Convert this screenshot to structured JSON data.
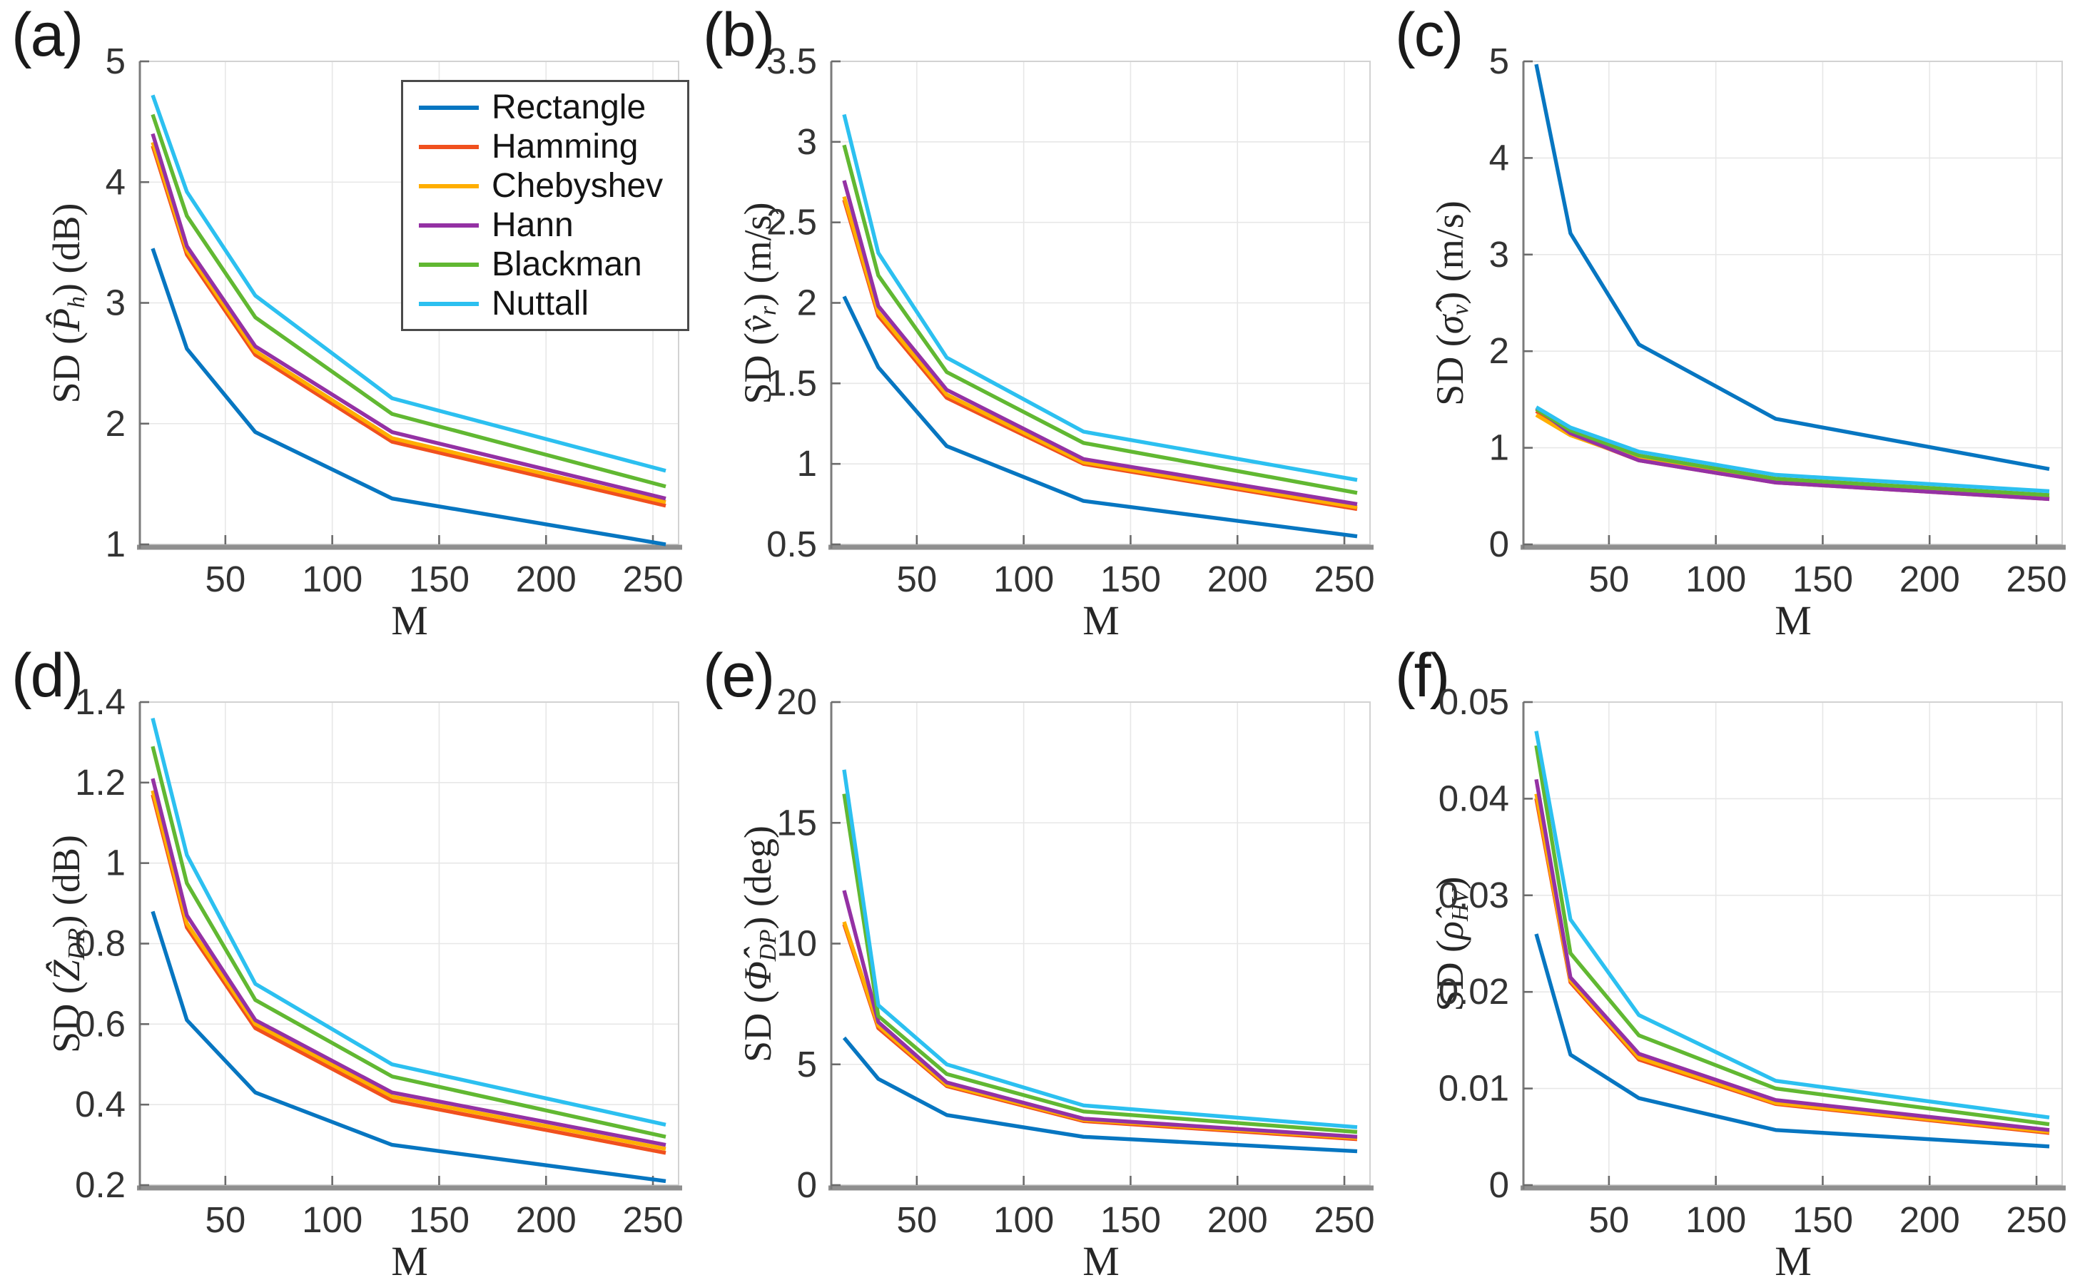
{
  "figure": {
    "background": "#ffffff",
    "xlabel": "M",
    "x_values": [
      16,
      32,
      64,
      128,
      256
    ],
    "series_names": [
      "Rectangle",
      "Hamming",
      "Chebyshev",
      "Hann",
      "Blackman",
      "Nuttall"
    ],
    "series_colors": [
      "#0776C1",
      "#F0501E",
      "#FFAE00",
      "#9431A4",
      "#61B832",
      "#2CC0F0"
    ]
  },
  "chart_data": [
    {
      "type": "line",
      "panel_label": "(a)",
      "xlabel": "M",
      "ylabel_parts": {
        "pre": "SD (",
        "sym": "P̂",
        "sub": "h",
        "post": ") (dB)"
      },
      "x": [
        16,
        32,
        64,
        128,
        256
      ],
      "xlim": [
        10,
        262
      ],
      "xticks": [
        50,
        100,
        150,
        200,
        250
      ],
      "ylim": [
        1,
        5
      ],
      "yticks": [
        "1",
        "2",
        "3",
        "4",
        "5"
      ],
      "grid": true,
      "legend": true,
      "legend_position": "upper right",
      "series": [
        {
          "name": "Rectangle",
          "color": "#0776C1",
          "values": [
            3.45,
            2.62,
            1.93,
            1.38,
            1.0
          ]
        },
        {
          "name": "Hamming",
          "color": "#F0501E",
          "values": [
            4.3,
            3.4,
            2.57,
            1.85,
            1.32
          ]
        },
        {
          "name": "Chebyshev",
          "color": "#FFAE00",
          "values": [
            4.33,
            3.43,
            2.6,
            1.88,
            1.35
          ]
        },
        {
          "name": "Hann",
          "color": "#9431A4",
          "values": [
            4.4,
            3.47,
            2.64,
            1.93,
            1.38
          ]
        },
        {
          "name": "Blackman",
          "color": "#61B832",
          "values": [
            4.56,
            3.72,
            2.88,
            2.08,
            1.48
          ]
        },
        {
          "name": "Nuttall",
          "color": "#2CC0F0",
          "values": [
            4.72,
            3.92,
            3.06,
            2.21,
            1.61
          ]
        }
      ]
    },
    {
      "type": "line",
      "panel_label": "(b)",
      "xlabel": "M",
      "ylabel_parts": {
        "pre": "SD (",
        "sym": "v̂",
        "sub": "r",
        "post": ") (m/s)"
      },
      "x": [
        16,
        32,
        64,
        128,
        256
      ],
      "xlim": [
        10,
        262
      ],
      "xticks": [
        50,
        100,
        150,
        200,
        250
      ],
      "ylim": [
        0.5,
        3.5
      ],
      "yticks": [
        "0.5",
        "1",
        "1.5",
        "2",
        "2.5",
        "3",
        "3.5"
      ],
      "grid": true,
      "legend": false,
      "series": [
        {
          "name": "Rectangle",
          "color": "#0776C1",
          "values": [
            2.04,
            1.6,
            1.11,
            0.77,
            0.55
          ]
        },
        {
          "name": "Hamming",
          "color": "#F0501E",
          "values": [
            2.64,
            1.92,
            1.41,
            1.0,
            0.72
          ]
        },
        {
          "name": "Chebyshev",
          "color": "#FFAE00",
          "values": [
            2.66,
            1.94,
            1.43,
            1.01,
            0.73
          ]
        },
        {
          "name": "Hann",
          "color": "#9431A4",
          "values": [
            2.76,
            1.98,
            1.46,
            1.03,
            0.75
          ]
        },
        {
          "name": "Blackman",
          "color": "#61B832",
          "values": [
            2.98,
            2.17,
            1.57,
            1.13,
            0.82
          ]
        },
        {
          "name": "Nuttall",
          "color": "#2CC0F0",
          "values": [
            3.17,
            2.31,
            1.66,
            1.2,
            0.9
          ]
        }
      ]
    },
    {
      "type": "line",
      "panel_label": "(c)",
      "xlabel": "M",
      "ylabel_parts": {
        "pre": "SD (",
        "sym": "σ̂",
        "sub": "v",
        "post": ") (m/s)"
      },
      "x": [
        16,
        32,
        64,
        128,
        256
      ],
      "xlim": [
        10,
        262
      ],
      "xticks": [
        50,
        100,
        150,
        200,
        250
      ],
      "ylim": [
        0,
        5
      ],
      "yticks": [
        "0",
        "1",
        "2",
        "3",
        "4",
        "5"
      ],
      "grid": true,
      "legend": false,
      "series": [
        {
          "name": "Rectangle",
          "color": "#0776C1",
          "values": [
            4.97,
            3.22,
            2.07,
            1.3,
            0.78
          ]
        },
        {
          "name": "Hamming",
          "color": "#F0501E",
          "values": [
            1.38,
            1.14,
            0.87,
            0.64,
            0.47
          ]
        },
        {
          "name": "Chebyshev",
          "color": "#FFAE00",
          "values": [
            1.34,
            1.13,
            0.88,
            0.65,
            0.48
          ]
        },
        {
          "name": "Hann",
          "color": "#9431A4",
          "values": [
            1.41,
            1.15,
            0.87,
            0.64,
            0.47
          ]
        },
        {
          "name": "Blackman",
          "color": "#61B832",
          "values": [
            1.4,
            1.18,
            0.92,
            0.68,
            0.51
          ]
        },
        {
          "name": "Nuttall",
          "color": "#2CC0F0",
          "values": [
            1.42,
            1.21,
            0.96,
            0.72,
            0.55
          ]
        }
      ]
    },
    {
      "type": "line",
      "panel_label": "(d)",
      "xlabel": "M",
      "ylabel_parts": {
        "pre": "SD (",
        "sym": "Ẑ",
        "sub": "DR",
        "post": ") (dB)"
      },
      "x": [
        16,
        32,
        64,
        128,
        256
      ],
      "xlim": [
        10,
        262
      ],
      "xticks": [
        50,
        100,
        150,
        200,
        250
      ],
      "ylim": [
        0.2,
        1.4
      ],
      "yticks": [
        "0.2",
        "0.4",
        "0.6",
        "0.8",
        "1",
        "1.2",
        "1.4"
      ],
      "grid": true,
      "legend": false,
      "series": [
        {
          "name": "Rectangle",
          "color": "#0776C1",
          "values": [
            0.88,
            0.61,
            0.43,
            0.3,
            0.21
          ]
        },
        {
          "name": "Hamming",
          "color": "#F0501E",
          "values": [
            1.17,
            0.84,
            0.59,
            0.41,
            0.28
          ]
        },
        {
          "name": "Chebyshev",
          "color": "#FFAE00",
          "values": [
            1.18,
            0.85,
            0.6,
            0.42,
            0.29
          ]
        },
        {
          "name": "Hann",
          "color": "#9431A4",
          "values": [
            1.21,
            0.87,
            0.61,
            0.43,
            0.3
          ]
        },
        {
          "name": "Blackman",
          "color": "#61B832",
          "values": [
            1.29,
            0.95,
            0.66,
            0.47,
            0.32
          ]
        },
        {
          "name": "Nuttall",
          "color": "#2CC0F0",
          "values": [
            1.36,
            1.02,
            0.7,
            0.5,
            0.35
          ]
        }
      ]
    },
    {
      "type": "line",
      "panel_label": "(e)",
      "xlabel": "M",
      "ylabel_parts": {
        "pre": "SD (",
        "sym": "Φ̂",
        "sub": "DP",
        "post": ") (deg)"
      },
      "x": [
        16,
        32,
        64,
        128,
        256
      ],
      "xlim": [
        10,
        262
      ],
      "xticks": [
        50,
        100,
        150,
        200,
        250
      ],
      "ylim": [
        0,
        20
      ],
      "yticks": [
        "0",
        "5",
        "10",
        "15",
        "20"
      ],
      "grid": true,
      "legend": false,
      "series": [
        {
          "name": "Rectangle",
          "color": "#0776C1",
          "values": [
            6.1,
            4.4,
            2.9,
            2.0,
            1.4
          ]
        },
        {
          "name": "Hamming",
          "color": "#F0501E",
          "values": [
            10.8,
            6.5,
            4.1,
            2.65,
            1.9
          ]
        },
        {
          "name": "Chebyshev",
          "color": "#FFAE00",
          "values": [
            10.9,
            6.6,
            4.15,
            2.7,
            1.95
          ]
        },
        {
          "name": "Hann",
          "color": "#9431A4",
          "values": [
            12.2,
            6.75,
            4.25,
            2.75,
            2.0
          ]
        },
        {
          "name": "Blackman",
          "color": "#61B832",
          "values": [
            16.2,
            7.0,
            4.6,
            3.05,
            2.2
          ]
        },
        {
          "name": "Nuttall",
          "color": "#2CC0F0",
          "values": [
            17.2,
            7.45,
            5.0,
            3.3,
            2.4
          ]
        }
      ]
    },
    {
      "type": "line",
      "panel_label": "(f)",
      "xlabel": "M",
      "ylabel_parts": {
        "pre": "SD (",
        "sym": "ρ̂",
        "sub": "HV",
        "post": ")"
      },
      "x": [
        16,
        32,
        64,
        128,
        256
      ],
      "xlim": [
        10,
        262
      ],
      "xticks": [
        50,
        100,
        150,
        200,
        250
      ],
      "ylim": [
        0,
        0.05
      ],
      "yticks": [
        "0",
        "0.01",
        "0.02",
        "0.03",
        "0.04",
        "0.05"
      ],
      "grid": true,
      "legend": false,
      "series": [
        {
          "name": "Rectangle",
          "color": "#0776C1",
          "values": [
            0.026,
            0.0135,
            0.009,
            0.0057,
            0.004
          ]
        },
        {
          "name": "Hamming",
          "color": "#F0501E",
          "values": [
            0.04,
            0.021,
            0.013,
            0.0084,
            0.0054
          ]
        },
        {
          "name": "Chebyshev",
          "color": "#FFAE00",
          "values": [
            0.0405,
            0.0212,
            0.0132,
            0.0085,
            0.0055
          ]
        },
        {
          "name": "Hann",
          "color": "#9431A4",
          "values": [
            0.042,
            0.0215,
            0.0136,
            0.0088,
            0.0057
          ]
        },
        {
          "name": "Blackman",
          "color": "#61B832",
          "values": [
            0.0455,
            0.024,
            0.0155,
            0.01,
            0.0063
          ]
        },
        {
          "name": "Nuttall",
          "color": "#2CC0F0",
          "values": [
            0.047,
            0.0275,
            0.0176,
            0.0108,
            0.007
          ]
        }
      ]
    }
  ]
}
